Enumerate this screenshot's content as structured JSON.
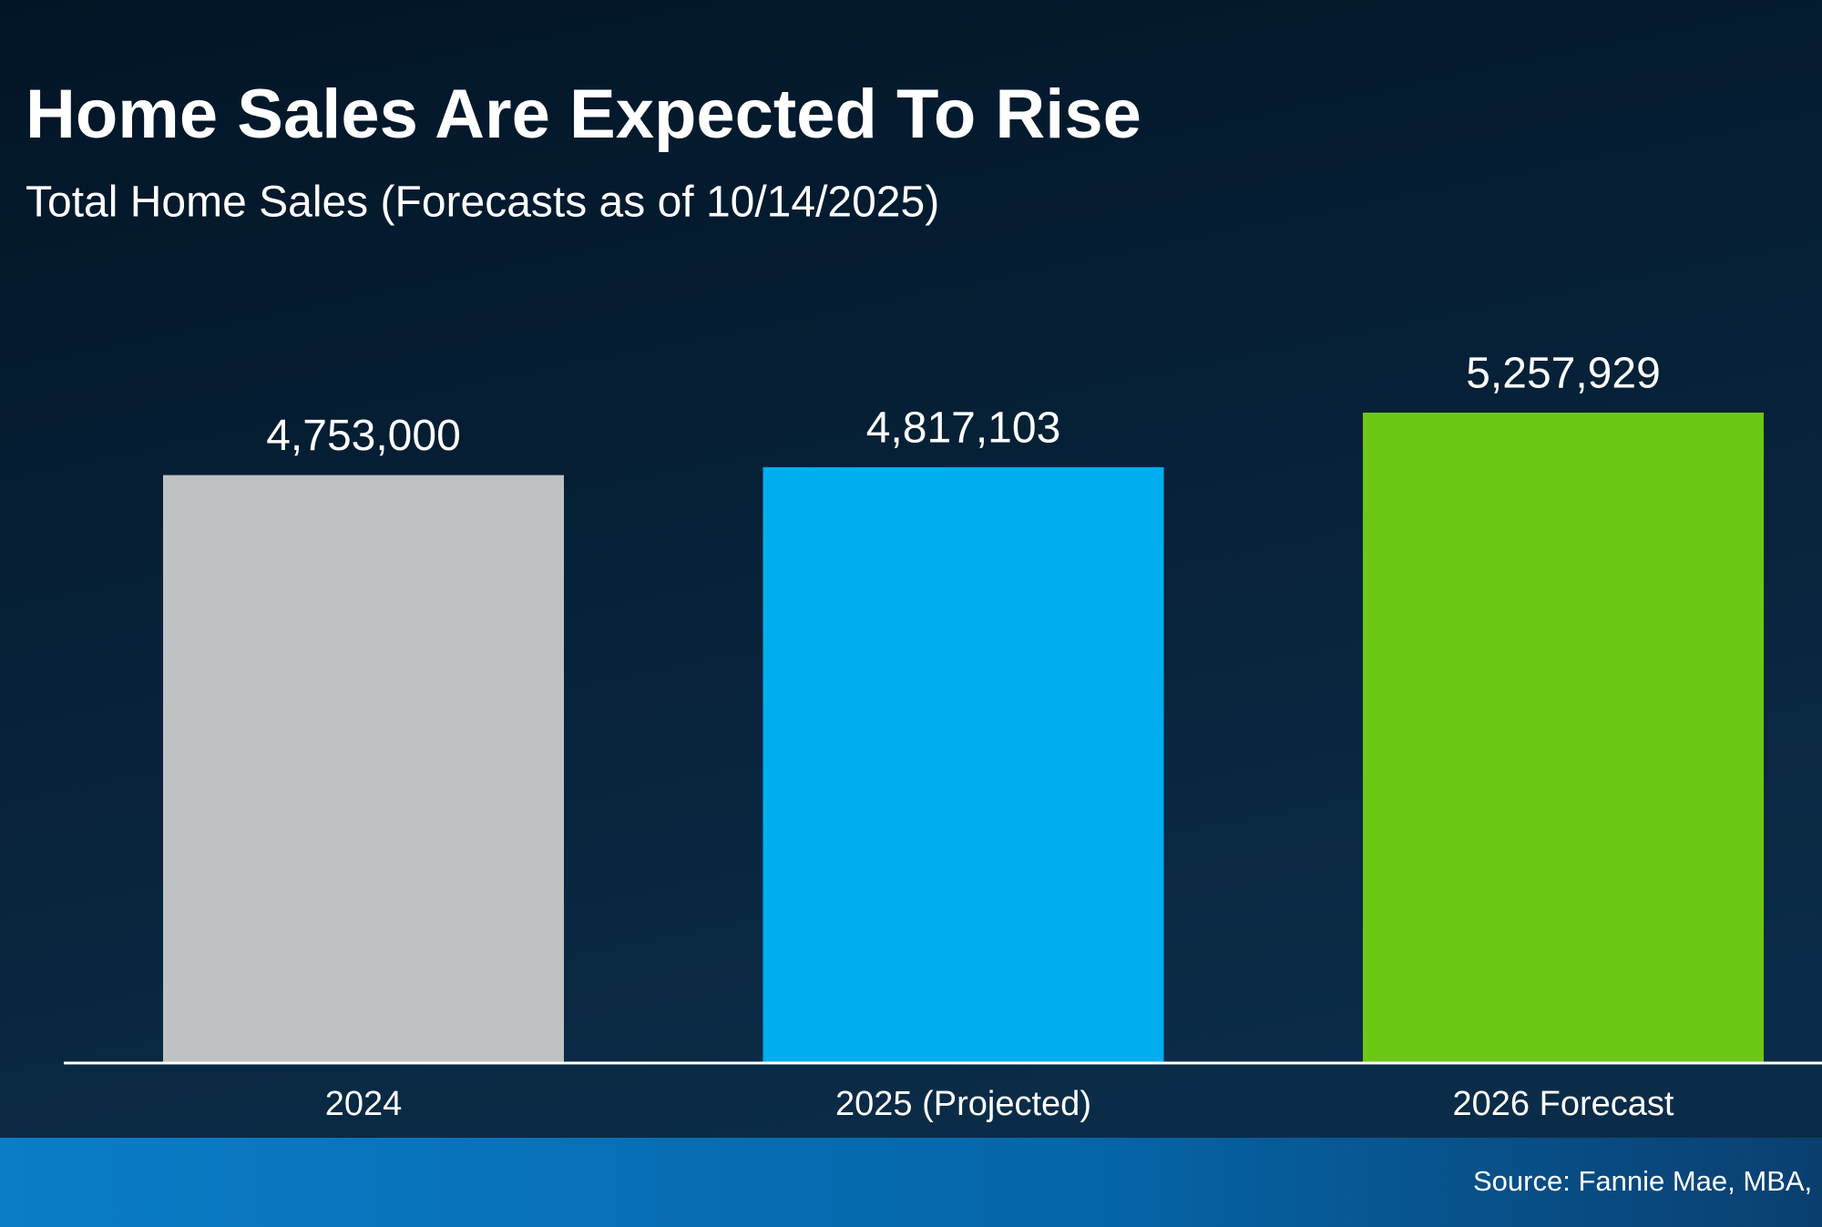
{
  "chart_data": {
    "type": "bar",
    "title": "Home Sales Are Expected To Rise",
    "subtitle": "Total Home Sales (Forecasts as of 10/14/2025)",
    "categories": [
      "2024",
      "2025 (Projected)",
      "2026 Forecast"
    ],
    "values": [
      4753000,
      4817103,
      5257929
    ],
    "value_labels": [
      "4,753,000",
      "4,817,103",
      "5,257,929"
    ],
    "colors": [
      "#bec2c3",
      "#00aeef",
      "#6cc814"
    ],
    "source": "Source: Fannie Mae, MBA, N"
  }
}
